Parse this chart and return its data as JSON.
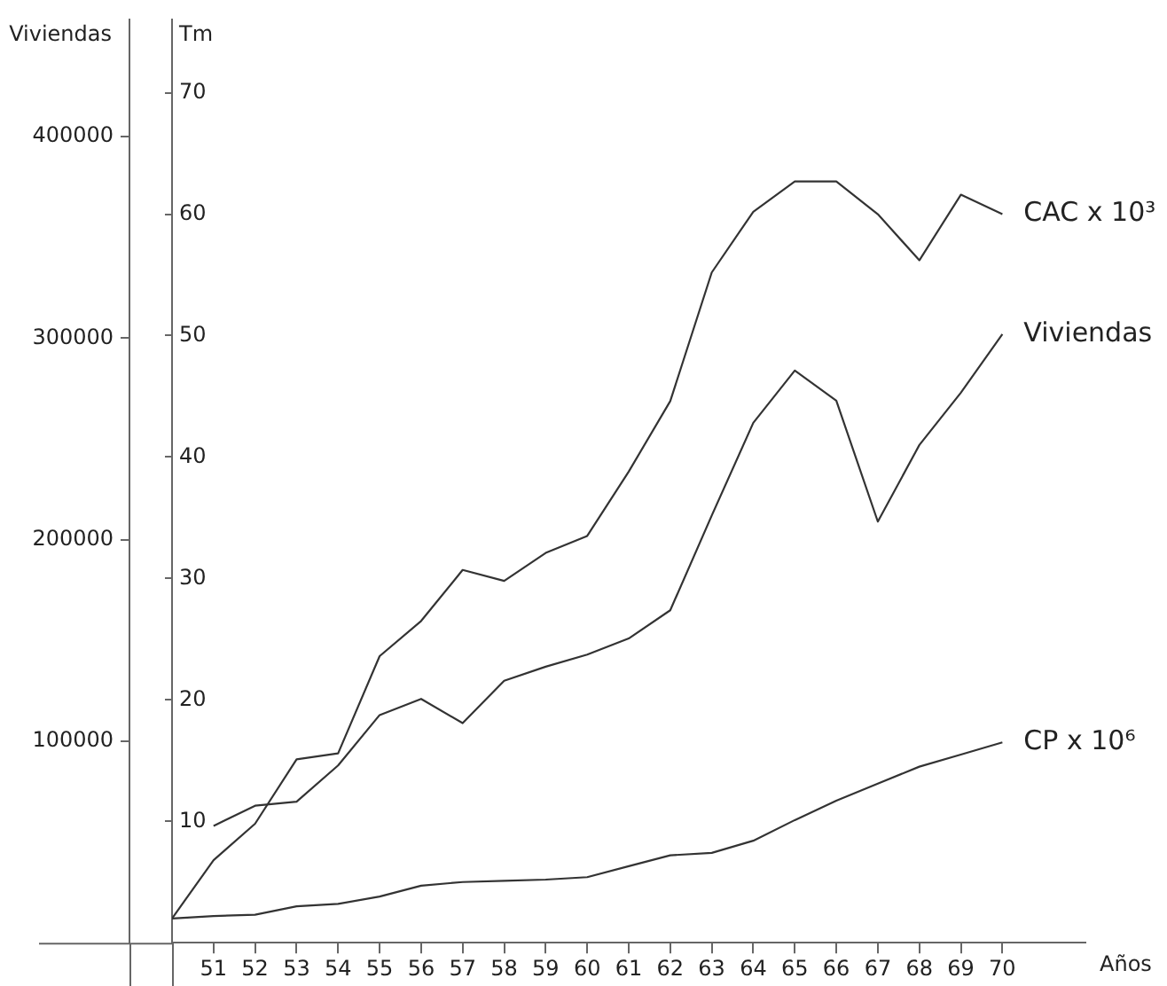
{
  "chart_data": {
    "type": "line",
    "xlabel": "Años",
    "ylabel": "Viviendas",
    "y2label": "Tm",
    "x": [
      50,
      51,
      52,
      53,
      54,
      55,
      56,
      57,
      58,
      59,
      60,
      61,
      62,
      63,
      64,
      65,
      66,
      67,
      68,
      69,
      70
    ],
    "series": [
      {
        "name": "CAC x 10³",
        "color": "#333333",
        "axis": "y2",
        "values": [
          2.0,
          6.8,
          9.8,
          15.1,
          15.6,
          23.6,
          26.5,
          30.7,
          29.8,
          32.1,
          33.5,
          38.8,
          44.6,
          55.2,
          60.2,
          62.7,
          62.7,
          60.0,
          56.2,
          61.6,
          60.0
        ]
      },
      {
        "name": "Viviendas",
        "color": "#333333",
        "values": [
          null,
          58000,
          68000,
          70000,
          88000,
          113000,
          121000,
          109000,
          130000,
          137000,
          143000,
          151000,
          165000,
          212000,
          258000,
          284000,
          269000,
          209000,
          247000,
          273000,
          302000
        ]
      },
      {
        "name": "CP x 10⁶",
        "color": "#333333",
        "axis": "y2",
        "values": [
          2.0,
          2.2,
          2.3,
          3.0,
          3.2,
          3.8,
          4.7,
          5.0,
          5.1,
          5.2,
          5.4,
          6.3,
          7.2,
          7.4,
          8.4,
          10.1,
          11.7,
          13.1,
          14.5,
          15.5,
          16.5
        ]
      }
    ],
    "xlim": [
      50,
      72
    ],
    "xticks": [
      51,
      52,
      53,
      54,
      55,
      56,
      57,
      58,
      59,
      60,
      61,
      62,
      63,
      64,
      65,
      66,
      67,
      68,
      69,
      70
    ],
    "ylim": [
      0,
      458000
    ],
    "yticks": [
      100000,
      200000,
      300000,
      400000
    ],
    "y2lim": [
      0,
      76
    ],
    "y2ticks": [
      10,
      20,
      30,
      40,
      50,
      60,
      70
    ],
    "grid": false,
    "legend": false,
    "marker": "none",
    "line_style": "solid"
  }
}
